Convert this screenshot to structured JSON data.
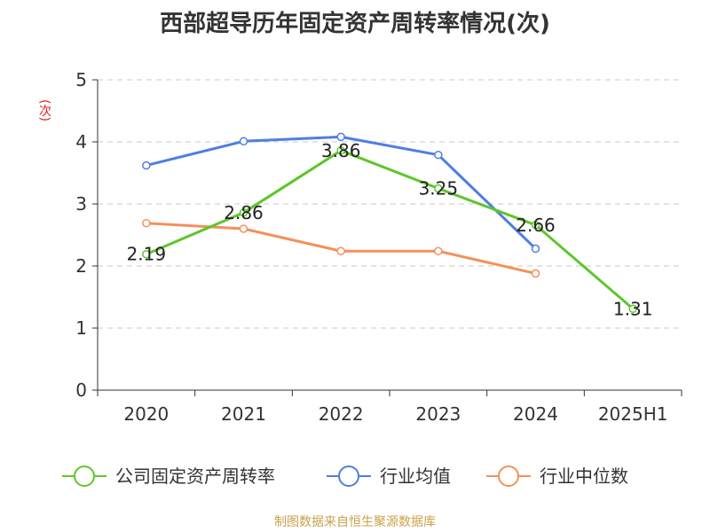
{
  "chart_data": {
    "type": "line",
    "title": "西部超导历年固定资产周转率情况(次)",
    "ylabel": "(次)",
    "categories": [
      "2020",
      "2021",
      "2022",
      "2023",
      "2024",
      "2025H1"
    ],
    "ylim": [
      0,
      5
    ],
    "yticks": [
      0,
      1,
      2,
      3,
      4,
      5
    ],
    "grid": true,
    "legend_position": "bottom",
    "series": [
      {
        "name": "公司固定资产周转率",
        "color": "#5ec62a",
        "values": [
          2.19,
          2.86,
          3.86,
          3.25,
          2.66,
          1.31
        ],
        "labels": [
          "2.19",
          "2.86",
          "3.86",
          "3.25",
          "2.66",
          "1.31"
        ]
      },
      {
        "name": "行业均值",
        "color": "#4f7ee2",
        "values": [
          3.62,
          4.01,
          4.08,
          3.79,
          2.28,
          null
        ]
      },
      {
        "name": "行业中位数",
        "color": "#f2915a",
        "values": [
          2.69,
          2.6,
          2.24,
          2.24,
          1.88,
          null
        ]
      }
    ],
    "source": "制图数据来自恒生聚源数据库"
  }
}
